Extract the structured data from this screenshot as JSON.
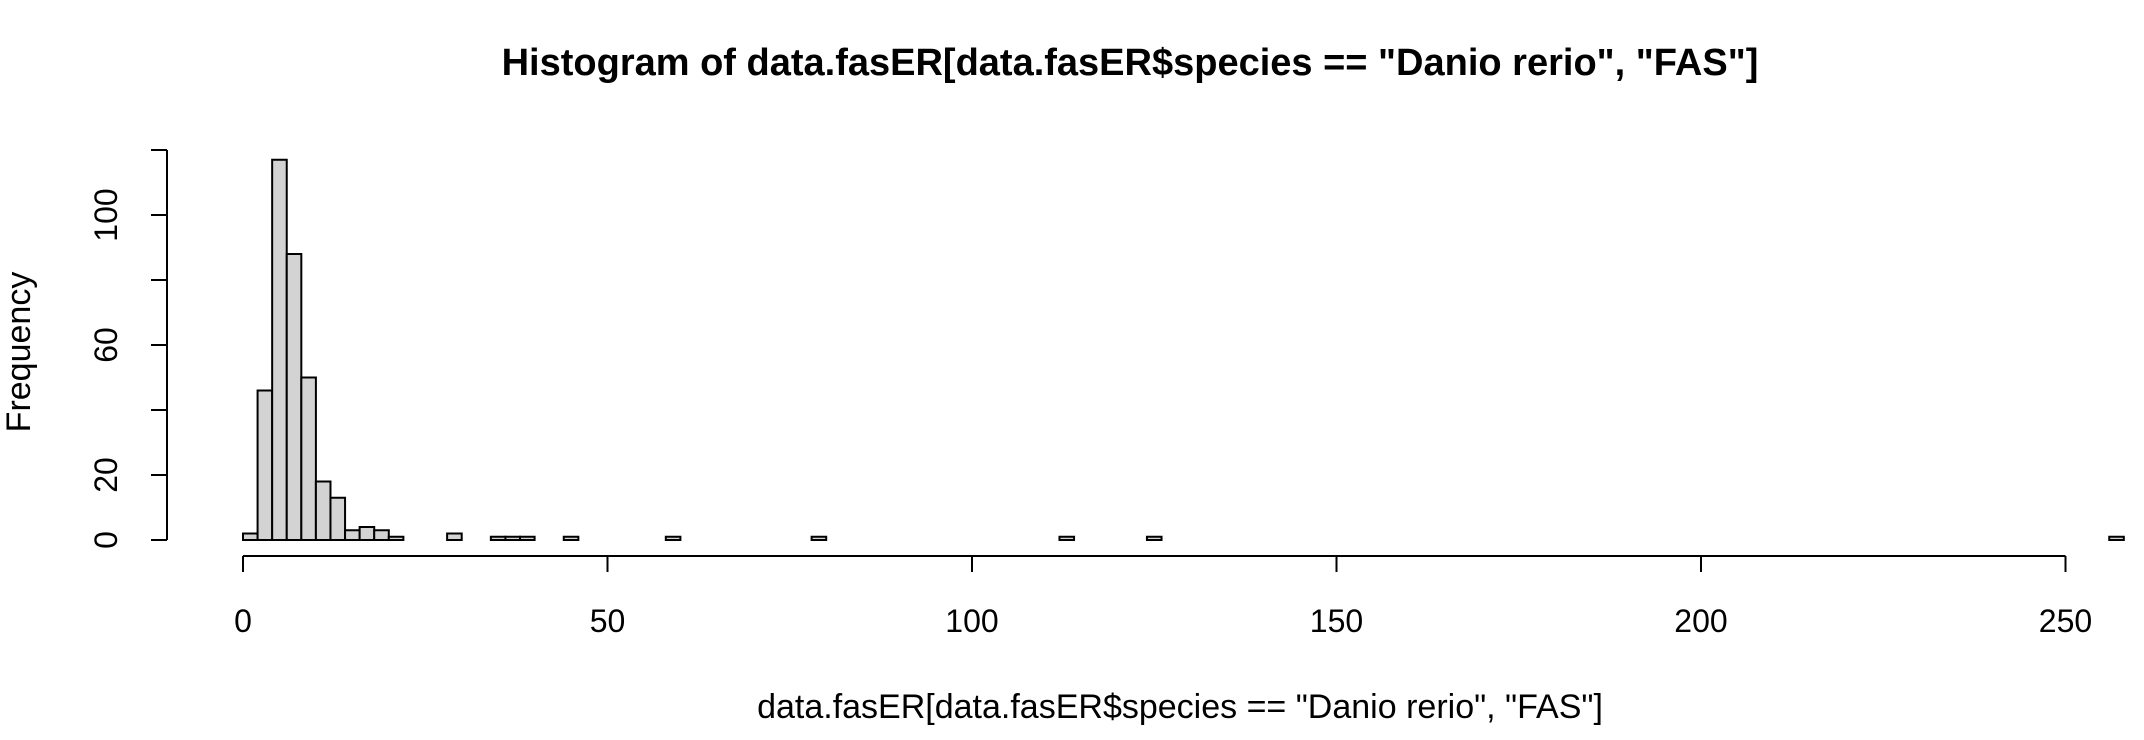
{
  "chart_data": {
    "type": "bar",
    "title": "Histogram of data.fasER[data.fasER$species == \"Danio rerio\", \"FAS\"]",
    "xlabel": "data.fasER[data.fasER$species == \"Danio rerio\", \"FAS\"]",
    "ylabel": "Frequency",
    "xlim": [
      0,
      258
    ],
    "ylim": [
      0,
      120
    ],
    "x_ticks": [
      0,
      50,
      100,
      150,
      200,
      250
    ],
    "x_tick_labels": [
      "0",
      "50",
      "100",
      "150",
      "200",
      "250"
    ],
    "y_ticks": [
      0,
      20,
      60,
      100
    ],
    "y_tick_labels": [
      "0",
      "20",
      "60",
      "100"
    ],
    "y_axis_extent": [
      0,
      120
    ],
    "bin_width": 2,
    "bins": [
      {
        "x0": 0,
        "x1": 2,
        "count": 2
      },
      {
        "x0": 2,
        "x1": 4,
        "count": 46
      },
      {
        "x0": 4,
        "x1": 6,
        "count": 117
      },
      {
        "x0": 6,
        "x1": 8,
        "count": 88
      },
      {
        "x0": 8,
        "x1": 10,
        "count": 50
      },
      {
        "x0": 10,
        "x1": 12,
        "count": 18
      },
      {
        "x0": 12,
        "x1": 14,
        "count": 13
      },
      {
        "x0": 14,
        "x1": 16,
        "count": 3
      },
      {
        "x0": 16,
        "x1": 18,
        "count": 4
      },
      {
        "x0": 18,
        "x1": 20,
        "count": 3
      },
      {
        "x0": 20,
        "x1": 22,
        "count": 1
      },
      {
        "x0": 28,
        "x1": 30,
        "count": 2
      },
      {
        "x0": 34,
        "x1": 36,
        "count": 1
      },
      {
        "x0": 36,
        "x1": 38,
        "count": 1
      },
      {
        "x0": 38,
        "x1": 40,
        "count": 1
      },
      {
        "x0": 44,
        "x1": 46,
        "count": 1
      },
      {
        "x0": 58,
        "x1": 60,
        "count": 1
      },
      {
        "x0": 78,
        "x1": 80,
        "count": 1
      },
      {
        "x0": 112,
        "x1": 114,
        "count": 1
      },
      {
        "x0": 124,
        "x1": 126,
        "count": 1
      },
      {
        "x0": 256,
        "x1": 258,
        "count": 1
      }
    ]
  }
}
